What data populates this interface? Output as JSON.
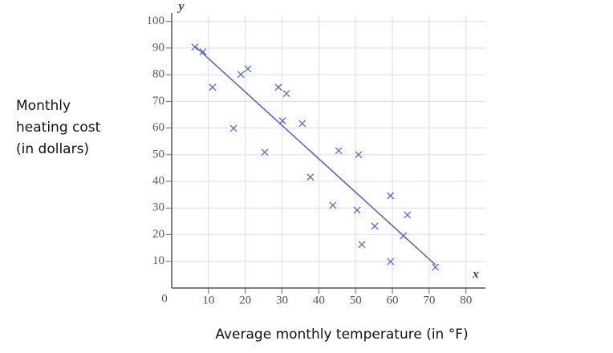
{
  "chart_data": {
    "type": "scatter",
    "xlabel": "Average monthly temperature (in °F)",
    "ylabel_lines": [
      "Monthly",
      "heating cost",
      "(in dollars)"
    ],
    "x_axis_name": "x",
    "y_axis_name": "y",
    "origin_label": "0",
    "xlim": [
      0,
      85.3
    ],
    "ylim": [
      0,
      102
    ],
    "xticks": [
      10,
      20,
      30,
      40,
      50,
      60,
      70,
      80
    ],
    "yticks": [
      10,
      20,
      30,
      40,
      50,
      60,
      70,
      80,
      90,
      100
    ],
    "grid": true,
    "series": [
      {
        "color": "#5a67c8",
        "marker": "x",
        "x": [
          6.3,
          8.5,
          11.1,
          16.8,
          18.8,
          20.7,
          25.3,
          29.0,
          30.1,
          31.2,
          35.5,
          37.7,
          43.8,
          45.4,
          50.4,
          50.8,
          51.7,
          55.2,
          59.5,
          59.5,
          63.0,
          64.1,
          71.7
        ],
        "values": [
          90.4,
          88.6,
          75.3,
          59.9,
          80.1,
          82.2,
          50.9,
          75.3,
          62.7,
          72.9,
          61.7,
          41.6,
          31.0,
          51.5,
          29.2,
          50.0,
          16.3,
          23.2,
          34.6,
          9.9,
          19.6,
          27.4,
          7.8
        ]
      }
    ],
    "trend_line": {
      "color": "#5a67c8",
      "x": [
        6.3,
        71.7
      ],
      "values": [
        90.7,
        8.7
      ]
    }
  }
}
